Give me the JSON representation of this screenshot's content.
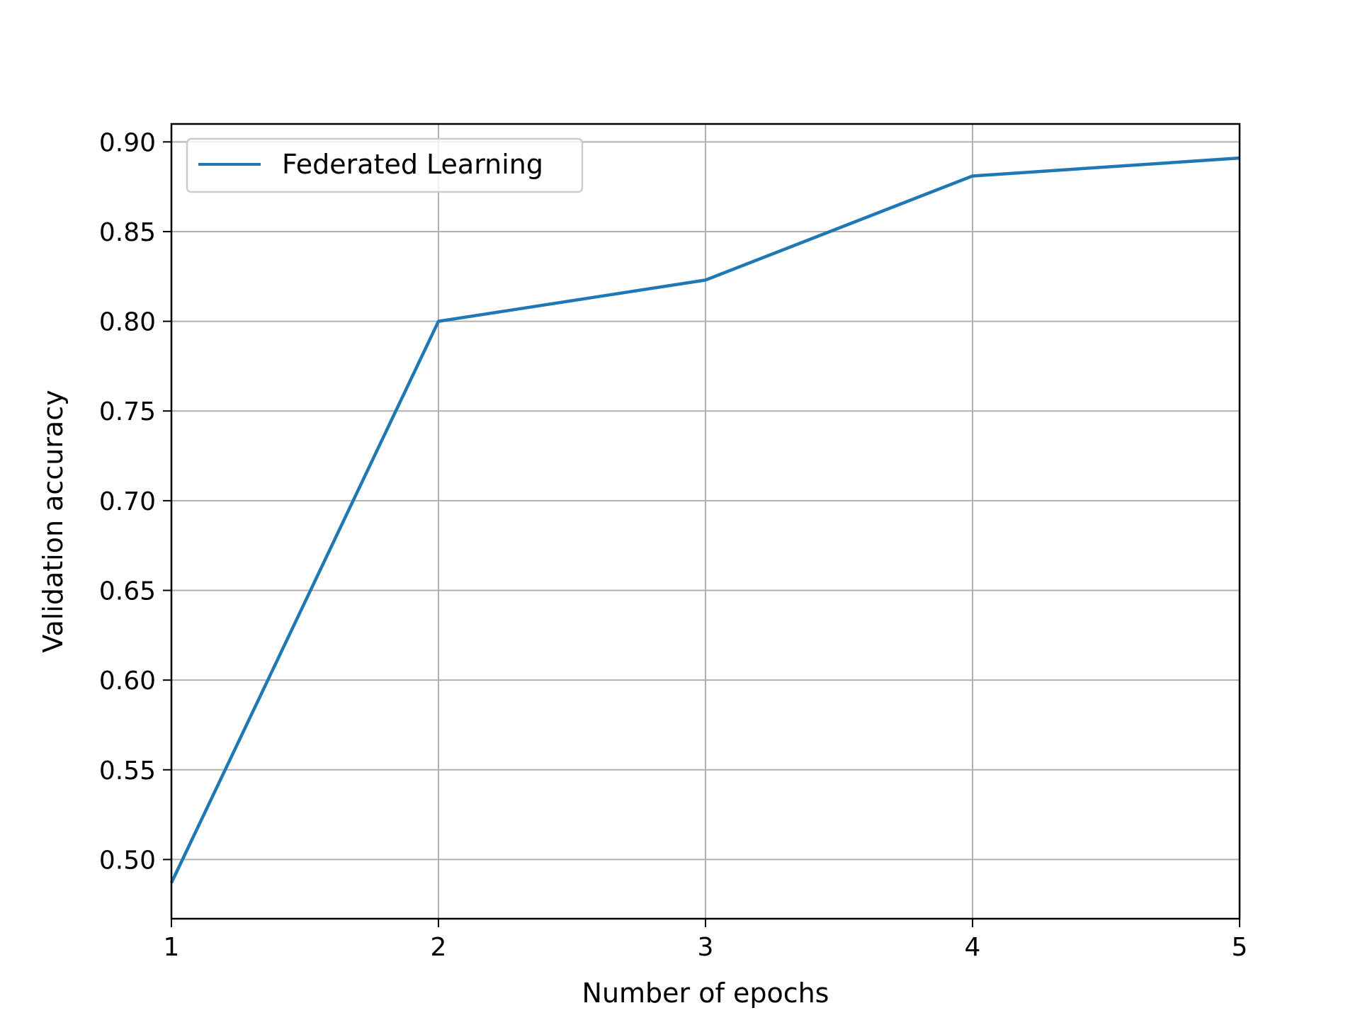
{
  "chart_data": {
    "type": "line",
    "title": "",
    "xlabel": "Number of epochs",
    "ylabel": "Validation accuracy",
    "x": [
      1,
      2,
      3,
      4,
      5
    ],
    "series": [
      {
        "name": "Federated Learning",
        "values": [
          0.487,
          0.8,
          0.823,
          0.881,
          0.891
        ],
        "color": "#1f77b4"
      }
    ],
    "xlim": [
      1,
      5
    ],
    "ylim": [
      0.467,
      0.91
    ],
    "xticks": [
      "1",
      "2",
      "3",
      "4",
      "5"
    ],
    "yticks": [
      "0.50",
      "0.55",
      "0.60",
      "0.65",
      "0.70",
      "0.75",
      "0.80",
      "0.85",
      "0.90"
    ],
    "grid": true,
    "legend_position": "upper-left"
  }
}
